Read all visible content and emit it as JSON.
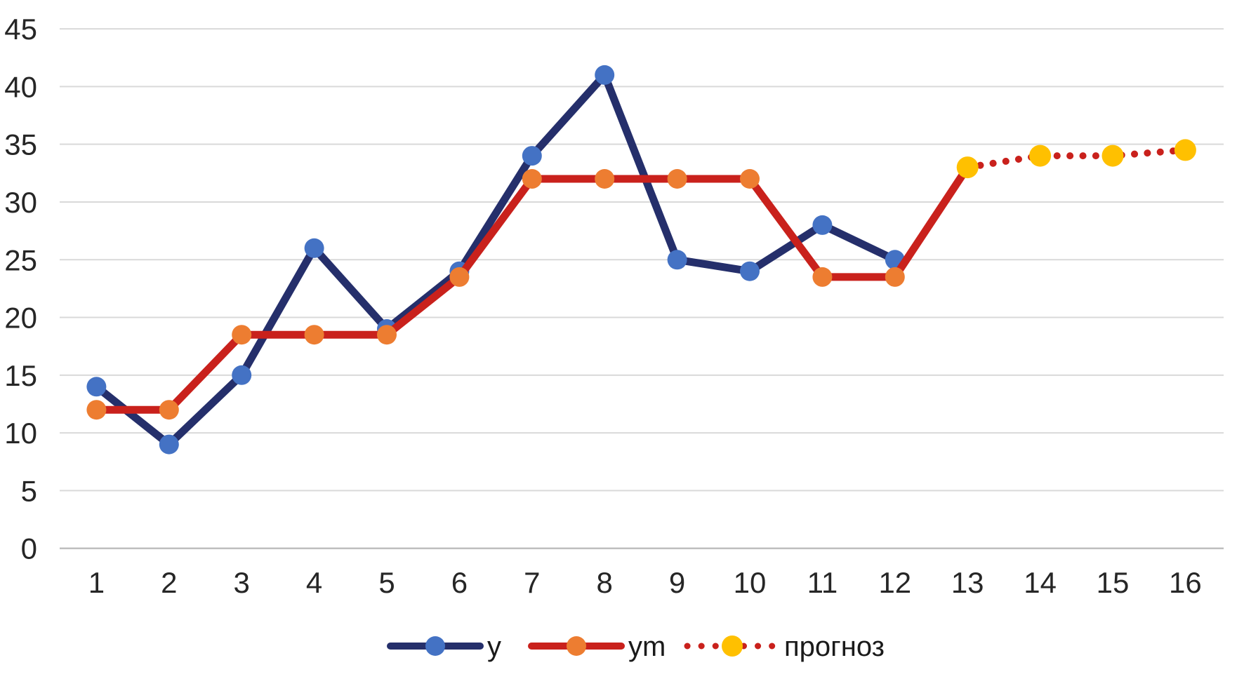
{
  "chart_data": {
    "type": "line",
    "title": "",
    "xlabel": "",
    "ylabel": "",
    "grid": true,
    "legend_position": "bottom",
    "xticks": [
      1,
      2,
      3,
      4,
      5,
      6,
      7,
      8,
      9,
      10,
      11,
      12,
      13,
      14,
      15,
      16
    ],
    "yticks": [
      0,
      5,
      10,
      15,
      20,
      25,
      30,
      35,
      40,
      45
    ],
    "ylim": [
      0,
      45
    ],
    "xlim": [
      1,
      16
    ],
    "series": [
      {
        "name": "y",
        "x": [
          1,
          2,
          3,
          4,
          5,
          6,
          7,
          8,
          9,
          10,
          11,
          12
        ],
        "values": [
          14,
          9,
          15,
          26,
          19,
          24,
          34,
          41,
          25,
          24,
          28,
          25
        ],
        "style": "solid",
        "line_color": "#252F6B",
        "marker_color": "#4472C4",
        "marker_x": [
          1,
          2,
          3,
          4,
          5,
          6,
          7,
          8,
          9,
          10,
          11,
          12
        ]
      },
      {
        "name": "ym",
        "x": [
          1,
          2,
          3,
          4,
          5,
          6,
          7,
          8,
          9,
          10,
          11,
          12,
          13
        ],
        "values": [
          12,
          12,
          18.5,
          18.5,
          18.5,
          23.5,
          32,
          32,
          32,
          32,
          23.5,
          23.5,
          33
        ],
        "style": "solid",
        "line_color": "#C9211C",
        "marker_color": "#ED7D31",
        "marker_x": [
          1,
          2,
          3,
          4,
          5,
          6,
          7,
          8,
          9,
          10,
          11,
          12
        ]
      },
      {
        "name": "прогноз",
        "x": [
          13,
          14,
          15,
          16
        ],
        "values": [
          33,
          34,
          34,
          34.5
        ],
        "style": "dotted",
        "line_color": "#C9211C",
        "marker_color": "#FFC000",
        "marker_x": [
          13,
          14,
          15,
          16
        ]
      }
    ],
    "legend": {
      "items": [
        {
          "label": "y"
        },
        {
          "label": "ym"
        },
        {
          "label": "прогноз"
        }
      ]
    },
    "colors": {
      "background": "#FFFFFF",
      "gridline": "#D9D9D9",
      "axis_line": "#BFBFBF",
      "tick_text": "#262626",
      "legend_text": "#1A1A1A"
    }
  }
}
